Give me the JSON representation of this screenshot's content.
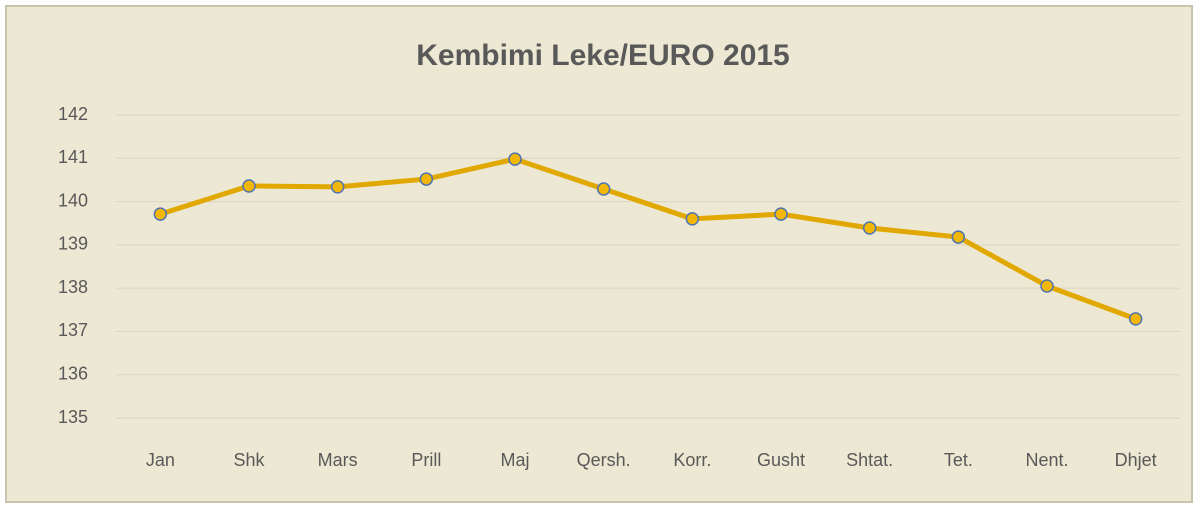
{
  "chart_data": {
    "type": "line",
    "title": "Kembimi Leke/EURO 2015",
    "categories": [
      "Jan",
      "Shk",
      "Mars",
      "Prill",
      "Maj",
      "Qersh.",
      "Korr.",
      "Gusht",
      "Shtat.",
      "Tet.",
      "Nent.",
      "Dhjet"
    ],
    "series": [
      {
        "name": "Kembimi Leke/EURO",
        "color": "#e0a800",
        "values": [
          139.71,
          140.36,
          140.34,
          140.52,
          140.98,
          140.29,
          139.6,
          139.71,
          139.39,
          139.18,
          138.05,
          137.29
        ]
      }
    ],
    "ylim": [
      135,
      142
    ],
    "yticks": [
      135,
      136,
      137,
      138,
      139,
      140,
      141,
      142
    ],
    "grid": true
  }
}
